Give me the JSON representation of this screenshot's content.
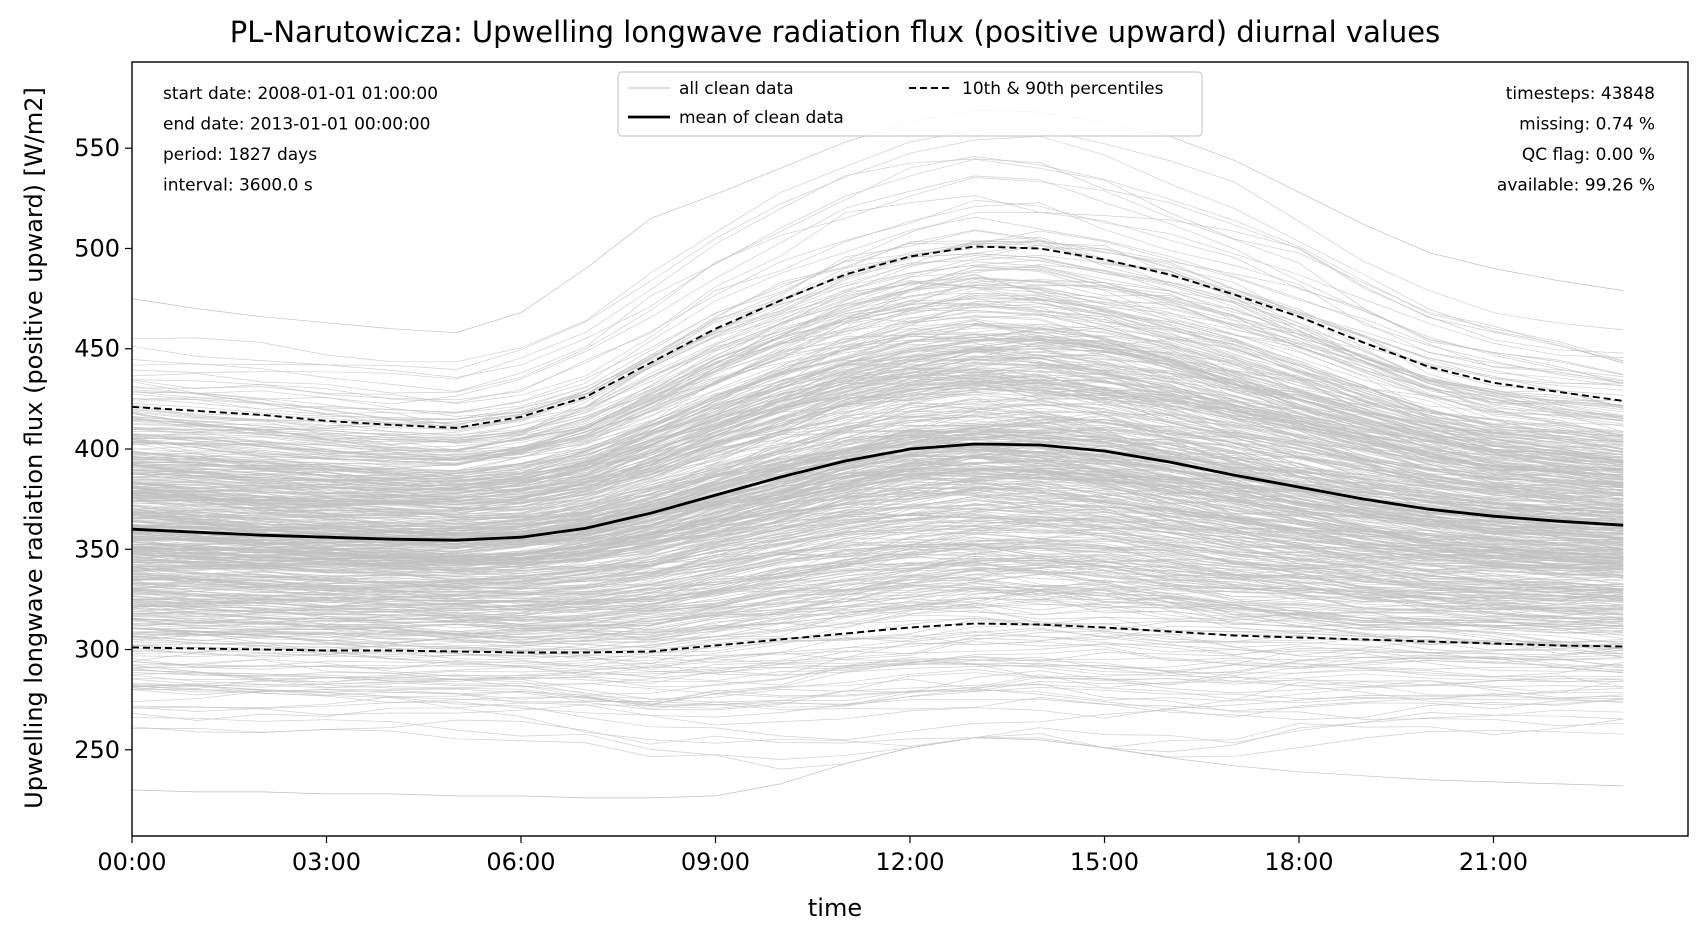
{
  "chart_data": {
    "type": "line",
    "title": "PL-Narutowicza: Upwelling longwave radiation flux (positive upward) diurnal values",
    "xlabel": "time",
    "ylabel": "Upwelling longwave radiation flux (positive upward) [W/m2]",
    "xlim": [
      0,
      24
    ],
    "ylim": [
      207,
      593
    ],
    "x_ticks": [
      {
        "value": 0,
        "label": "00:00"
      },
      {
        "value": 3,
        "label": "03:00"
      },
      {
        "value": 6,
        "label": "06:00"
      },
      {
        "value": 9,
        "label": "09:00"
      },
      {
        "value": 12,
        "label": "12:00"
      },
      {
        "value": 15,
        "label": "15:00"
      },
      {
        "value": 18,
        "label": "18:00"
      },
      {
        "value": 21,
        "label": "21:00"
      }
    ],
    "y_ticks": [
      250,
      300,
      350,
      400,
      450,
      500,
      550
    ],
    "x": [
      0,
      1,
      2,
      3,
      4,
      5,
      6,
      7,
      8,
      9,
      10,
      11,
      12,
      13,
      14,
      15,
      16,
      17,
      18,
      19,
      20,
      21,
      22,
      23
    ],
    "series": [
      {
        "name": "mean of clean data",
        "style": "solid",
        "color": "#000000",
        "values": [
          360,
          358.5,
          357,
          356,
          355,
          354.5,
          356,
          360.5,
          368,
          377,
          386,
          394,
          400,
          402.5,
          402,
          399,
          393.5,
          387,
          381,
          375,
          370,
          366.5,
          364,
          362
        ]
      },
      {
        "name": "10th & 90th percentiles",
        "style": "dashed",
        "color": "#000000",
        "values": [
          421,
          419,
          417,
          414,
          412,
          410.5,
          416,
          426,
          443,
          460,
          474,
          487,
          496,
          501,
          500,
          494.5,
          487,
          477,
          466,
          453,
          441,
          433,
          428.5,
          424
        ]
      },
      {
        "name": "10th & 90th percentiles",
        "style": "dashed",
        "color": "#000000",
        "values": [
          301,
          300.5,
          300,
          299.5,
          299.5,
          299,
          298.5,
          298.5,
          299,
          302,
          305,
          308,
          311,
          313,
          312.5,
          311,
          309,
          307,
          306,
          305,
          304,
          303,
          302,
          301.5
        ]
      },
      {
        "name": "all clean data",
        "style": "thin",
        "color": "#c0c0c0",
        "envelope_upper": [
          475,
          470,
          466,
          463,
          460,
          458,
          468,
          490,
          515,
          527,
          540,
          553,
          563,
          569,
          568,
          563,
          556,
          544,
          528,
          512,
          498,
          490,
          484,
          479
        ],
        "envelope_lower": [
          230,
          229,
          229,
          228,
          228,
          227,
          227,
          226,
          226,
          227,
          233,
          243,
          251,
          256,
          255,
          251,
          246,
          242,
          239,
          237,
          235,
          234,
          233,
          232
        ]
      }
    ],
    "legend": {
      "placement": "top-center",
      "entries": [
        {
          "label": "all clean data",
          "style": "thin",
          "color": "#c0c0c0"
        },
        {
          "label": "mean of clean data",
          "style": "solid",
          "color": "#000000"
        },
        {
          "label": "10th & 90th percentiles",
          "style": "dashed",
          "color": "#000000"
        }
      ]
    },
    "annotations_left": [
      "start date: 2008-01-01 01:00:00",
      "end date: 2013-01-01 00:00:00",
      "period: 1827 days",
      "interval: 3600.0 s"
    ],
    "annotations_right": [
      "timesteps: 43848",
      "missing: 0.74 %",
      "QC flag: 0.00 %",
      "available: 99.26 %"
    ],
    "grid": false
  }
}
